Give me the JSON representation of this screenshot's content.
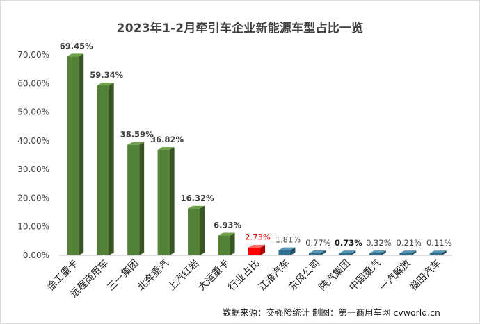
{
  "chart_data": {
    "type": "bar",
    "title": "2023年1-2月牵引车企业新能源车型占比一览",
    "categories": [
      "徐工重卡",
      "远程商用车",
      "三一集团",
      "北奔重汽",
      "上汽红岩",
      "大运重卡",
      "行业占比",
      "江淮汽车",
      "东风公司",
      "陕汽集团",
      "中国重汽",
      "一汽解放",
      "福田汽车"
    ],
    "values": [
      69.45,
      59.34,
      38.59,
      36.82,
      16.32,
      6.93,
      2.73,
      1.81,
      0.77,
      0.73,
      0.32,
      0.21,
      0.11
    ],
    "data_labels": [
      "69.45%",
      "59.34%",
      "38.59%",
      "36.82%",
      "16.32%",
      "6.93%",
      "2.73%",
      "1.81%",
      "0.77%",
      "0.73%",
      "0.32%",
      "0.21%",
      "0.11%"
    ],
    "y_tick_labels": [
      "0.00%",
      "10.00%",
      "20.00%",
      "30.00%",
      "40.00%",
      "50.00%",
      "60.00%",
      "70.00%"
    ],
    "ylim": [
      0,
      70
    ],
    "grid": false,
    "legend": "none",
    "xlabel": "",
    "ylabel": ""
  },
  "source_note": "数据来源：交强险统计   制图：第一商用车网 cvworld.cn",
  "colors": {
    "green_front": "#538135",
    "green_side": "#375623",
    "green_top": "#70a34a",
    "red_front": "#ff0000",
    "red_side": "#b00000",
    "red_top": "#ff6a6a",
    "blue_front": "#2f6f8f",
    "blue_side": "#1f4f66",
    "blue_top": "#5b97b5",
    "label_default": "#404040",
    "label_highlight": "#ff0000",
    "axis": "#bfbfbf"
  },
  "bar_colors": [
    "green",
    "green",
    "green",
    "green",
    "green",
    "green",
    "red",
    "blue",
    "blue",
    "blue",
    "blue",
    "blue",
    "blue"
  ]
}
